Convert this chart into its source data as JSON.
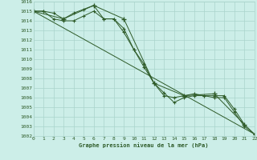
{
  "title": "Graphe pression niveau de la mer (hPa)",
  "bg_color": "#cceee8",
  "grid_color": "#aad4cc",
  "line_color": "#2d5a27",
  "xlim": [
    0,
    22
  ],
  "ylim": [
    1002,
    1016
  ],
  "xticks": [
    0,
    1,
    2,
    3,
    4,
    5,
    6,
    7,
    8,
    9,
    10,
    11,
    12,
    13,
    14,
    15,
    16,
    17,
    18,
    19,
    20,
    21,
    22
  ],
  "yticks": [
    1002,
    1003,
    1004,
    1005,
    1006,
    1007,
    1008,
    1009,
    1010,
    1011,
    1012,
    1013,
    1014,
    1015,
    1016
  ],
  "series": [
    {
      "x": [
        0,
        1,
        2,
        3,
        4,
        5,
        6,
        7,
        8,
        9,
        10,
        11,
        12,
        13,
        14,
        15,
        16,
        17,
        18,
        19,
        20,
        21,
        22
      ],
      "y": [
        1015.0,
        1015.0,
        1014.8,
        1014.2,
        1014.8,
        1015.2,
        1015.6,
        1014.2,
        1014.2,
        1012.8,
        1011.0,
        1009.2,
        1007.5,
        1006.2,
        1006.0,
        1006.2,
        1006.4,
        1006.2,
        1006.2,
        1006.2,
        1004.8,
        1003.2,
        1002.2
      ]
    },
    {
      "x": [
        0,
        1,
        2,
        3,
        4,
        5,
        6,
        7,
        8,
        9,
        10,
        11,
        12,
        13,
        14,
        15,
        16,
        17,
        18,
        19,
        20,
        21,
        22
      ],
      "y": [
        1015.0,
        1015.0,
        1014.2,
        1014.0,
        1014.0,
        1014.5,
        1015.0,
        1014.2,
        1014.2,
        1013.2,
        1011.0,
        1009.5,
        1007.5,
        1006.5,
        1005.5,
        1006.0,
        1006.2,
        1006.2,
        1006.0,
        1006.0,
        1004.5,
        1003.0,
        1002.2
      ]
    },
    {
      "x": [
        0,
        22
      ],
      "y": [
        1015.0,
        1002.2
      ]
    },
    {
      "x": [
        0,
        3,
        6,
        9,
        12,
        15,
        18,
        21
      ],
      "y": [
        1015.0,
        1014.2,
        1015.6,
        1014.2,
        1007.5,
        1006.2,
        1006.4,
        1003.2
      ]
    }
  ]
}
